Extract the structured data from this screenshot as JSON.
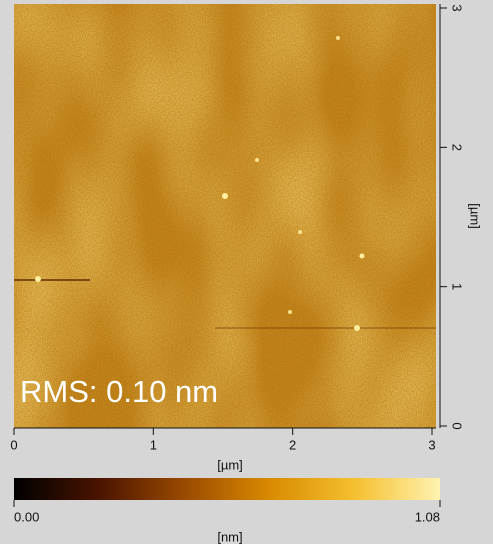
{
  "chart_data": {
    "type": "image",
    "annotation": "RMS: 0.10 nm",
    "xlabel": "[µm]",
    "ylabel": "[µm]",
    "xlim": [
      0,
      3
    ],
    "xticks": [
      0,
      1,
      2,
      3
    ],
    "ylim": [
      0,
      3
    ],
    "yticks": [
      0,
      1,
      2,
      3
    ],
    "colorbar": {
      "label": "[nm]",
      "lim": [
        0,
        1.08
      ],
      "ticks": [
        {
          "value": 0,
          "label": "0.00"
        },
        {
          "value": 1.08,
          "label": "1.08"
        }
      ],
      "colors": [
        "#000000",
        "#4a1400",
        "#9a4a00",
        "#d98a00",
        "#f5c030",
        "#fff2b0"
      ]
    }
  }
}
